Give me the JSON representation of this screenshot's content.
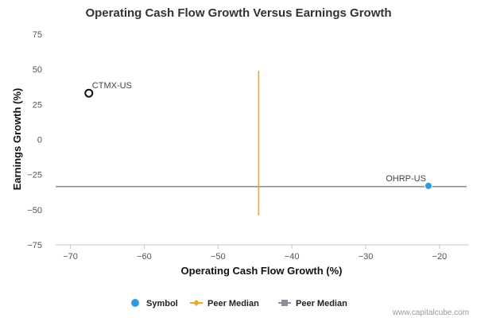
{
  "chart_data": {
    "type": "scatter",
    "title": "Operating Cash Flow Growth Versus Earnings Growth",
    "xlabel": "Operating Cash Flow Growth (%)",
    "ylabel": "Earnings Growth (%)",
    "xlim": [
      -72,
      -16
    ],
    "ylim": [
      -75,
      75
    ],
    "x_ticks": [
      -70,
      -60,
      -50,
      -40,
      -30,
      -20
    ],
    "y_ticks": [
      75,
      50,
      25,
      0,
      -25,
      -50,
      -75
    ],
    "grid": "none",
    "legend_position": "bottom",
    "points": [
      {
        "symbol": "CTMX-US",
        "x": -67.5,
        "y": 33,
        "style": "hollow",
        "color": "#111111"
      },
      {
        "symbol": "OHRP-US",
        "x": -21.5,
        "y": -33,
        "style": "filled",
        "color": "#2f9be6"
      }
    ],
    "peer_median_x": {
      "value": -44.5,
      "y_range": [
        -54,
        49
      ],
      "color": "#f5a623"
    },
    "peer_median_y": {
      "value": -33.5,
      "color": "#8a9099"
    },
    "legend": [
      {
        "label": "Symbol",
        "marker": "circle",
        "color": "#2f9be6"
      },
      {
        "label": "Peer Median",
        "marker": "diamond-line",
        "color": "#f5a623"
      },
      {
        "label": "Peer Median",
        "marker": "square-line",
        "color": "#8a9099"
      }
    ]
  },
  "credit": "www.capitalcube.com"
}
